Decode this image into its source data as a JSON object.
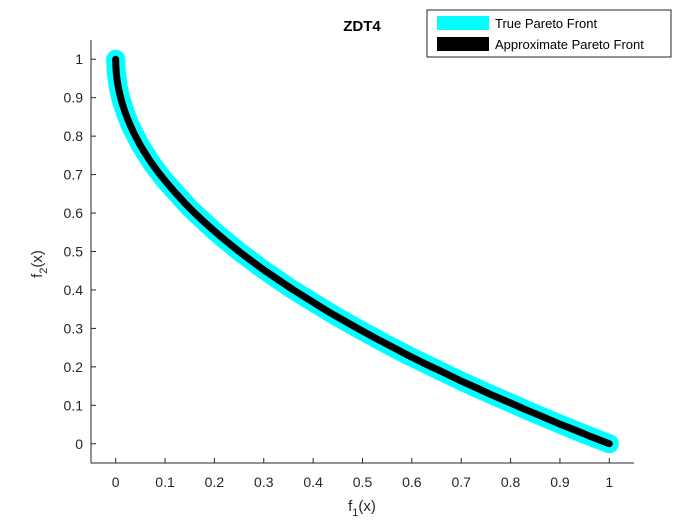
{
  "chart_data": {
    "type": "line",
    "title": "ZDT4",
    "xlabel": {
      "base": "f",
      "sub": "1",
      "suffix": "(x)"
    },
    "ylabel": {
      "base": "f",
      "sub": "2",
      "suffix": "(x)"
    },
    "xlim": [
      -0.05,
      1.05
    ],
    "ylim": [
      -0.05,
      1.05
    ],
    "xticks": [
      0,
      0.1,
      0.2,
      0.3,
      0.4,
      0.5,
      0.6,
      0.7,
      0.8,
      0.9,
      1
    ],
    "xtick_labels": [
      "0",
      "0.1",
      "0.2",
      "0.3",
      "0.4",
      "0.5",
      "0.6",
      "0.7",
      "0.8",
      "0.9",
      "1"
    ],
    "yticks": [
      0,
      0.1,
      0.2,
      0.3,
      0.4,
      0.5,
      0.6,
      0.7,
      0.8,
      0.9,
      1
    ],
    "ytick_labels": [
      "0",
      "0.1",
      "0.2",
      "0.3",
      "0.4",
      "0.5",
      "0.6",
      "0.7",
      "0.8",
      "0.9",
      "1"
    ],
    "grid": false,
    "legend_position": "top-right",
    "series": [
      {
        "name": "True Pareto Front",
        "color": "#00FFFF",
        "style": "thick-line",
        "x": [
          0,
          0.001,
          0.005,
          0.01,
          0.02,
          0.03,
          0.05,
          0.075,
          0.1,
          0.15,
          0.2,
          0.25,
          0.3,
          0.35,
          0.4,
          0.45,
          0.5,
          0.55,
          0.6,
          0.65,
          0.7,
          0.75,
          0.8,
          0.85,
          0.9,
          0.95,
          1
        ],
        "y": [
          1,
          0.968,
          0.929,
          0.9,
          0.859,
          0.827,
          0.776,
          0.726,
          0.684,
          0.613,
          0.553,
          0.5,
          0.452,
          0.408,
          0.368,
          0.329,
          0.293,
          0.258,
          0.225,
          0.194,
          0.163,
          0.134,
          0.106,
          0.078,
          0.051,
          0.025,
          0
        ]
      },
      {
        "name": "Approximate Pareto Front",
        "color": "#000000",
        "style": "dense-markers",
        "x": [
          0,
          0.0002,
          0.0006,
          0.0012,
          0.002,
          0.003,
          0.0045,
          0.006,
          0.008,
          0.01,
          0.013,
          0.016,
          0.02,
          0.025,
          0.03,
          0.035,
          0.04,
          0.05,
          0.06,
          0.07,
          0.08,
          0.09,
          0.1,
          0.12,
          0.14,
          0.16,
          0.18,
          0.2,
          0.22,
          0.25,
          0.28,
          0.3,
          0.33,
          0.36,
          0.4,
          0.43,
          0.46,
          0.5,
          0.53,
          0.56,
          0.6,
          0.63,
          0.66,
          0.7,
          0.73,
          0.76,
          0.8,
          0.83,
          0.86,
          0.9,
          0.93,
          0.96,
          1
        ],
        "y": [
          1,
          0.986,
          0.976,
          0.965,
          0.955,
          0.945,
          0.933,
          0.923,
          0.911,
          0.9,
          0.886,
          0.874,
          0.859,
          0.842,
          0.827,
          0.813,
          0.8,
          0.776,
          0.755,
          0.735,
          0.717,
          0.7,
          0.684,
          0.654,
          0.626,
          0.6,
          0.576,
          0.553,
          0.531,
          0.5,
          0.471,
          0.452,
          0.426,
          0.4,
          0.368,
          0.344,
          0.322,
          0.293,
          0.272,
          0.252,
          0.225,
          0.206,
          0.188,
          0.163,
          0.146,
          0.128,
          0.106,
          0.089,
          0.073,
          0.051,
          0.036,
          0.02,
          0
        ]
      }
    ]
  }
}
